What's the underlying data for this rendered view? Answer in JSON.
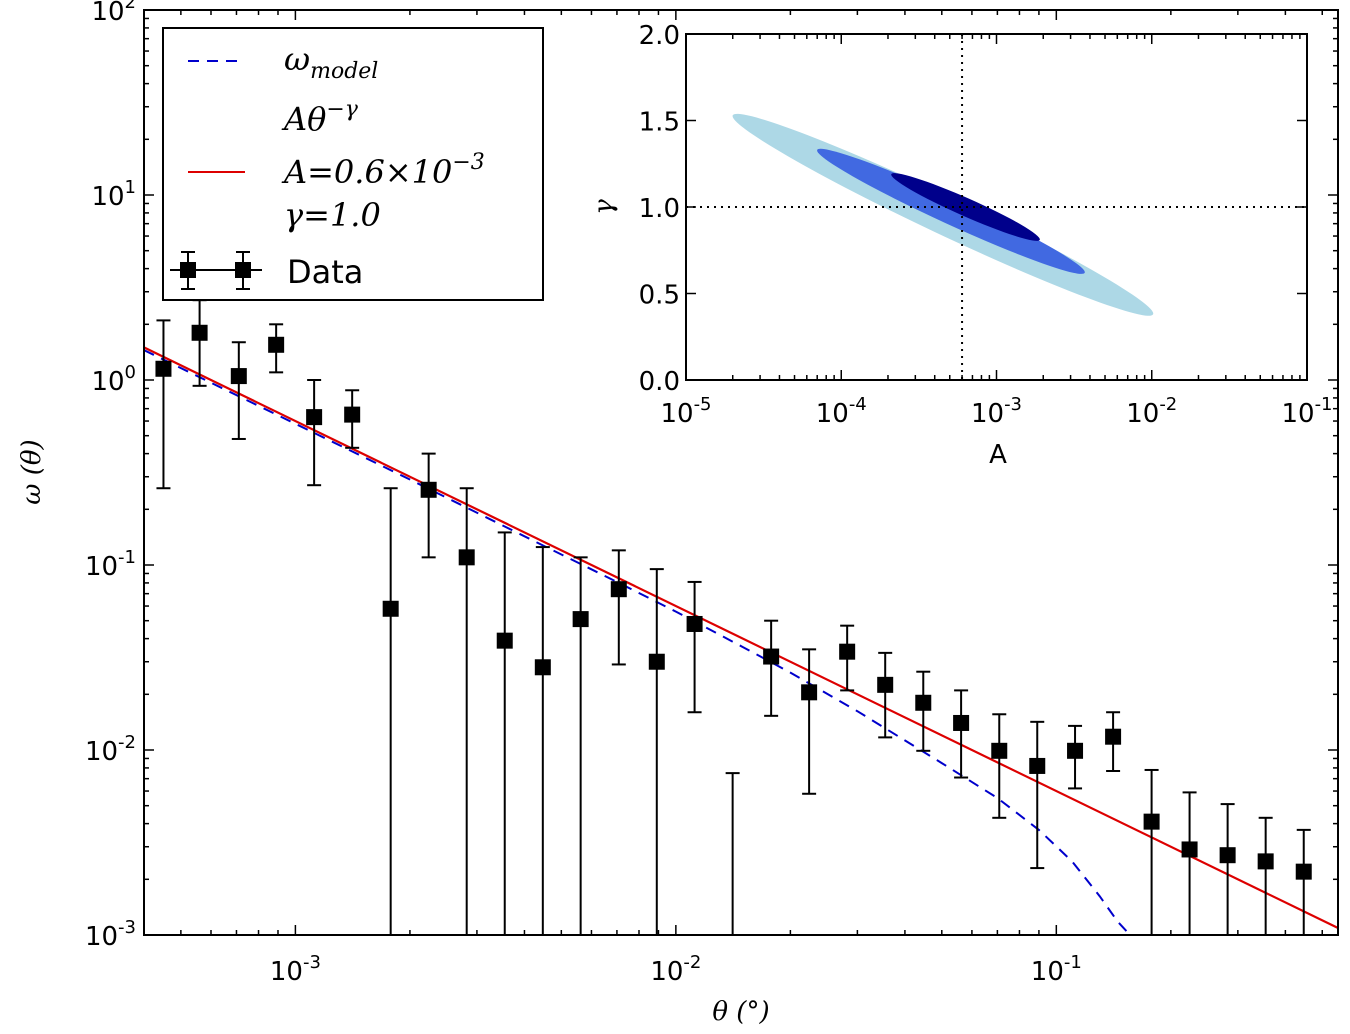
{
  "chart_data": [
    {
      "type": "scatter",
      "xscale": "log",
      "yscale": "log",
      "xlabel": "θ (°)",
      "ylabel": "ω (θ)",
      "xlim": [
        0.0004,
        0.55
      ],
      "ylim": [
        0.001,
        100
      ],
      "xticks": [
        {
          "value": 0.001,
          "base": "10",
          "exp": "-3"
        },
        {
          "value": 0.01,
          "base": "10",
          "exp": "-2"
        },
        {
          "value": 0.1,
          "base": "10",
          "exp": "-1"
        }
      ],
      "yticks": [
        {
          "value": 0.001,
          "base": "10",
          "exp": "-3"
        },
        {
          "value": 0.01,
          "base": "10",
          "exp": "-2"
        },
        {
          "value": 0.1,
          "base": "10",
          "exp": "-1"
        },
        {
          "value": 1,
          "base": "10",
          "exp": "0"
        },
        {
          "value": 10,
          "base": "10",
          "exp": "1"
        },
        {
          "value": 100,
          "base": "10",
          "exp": "2"
        }
      ],
      "legend": {
        "position": "top-left",
        "entries": [
          {
            "label": "ωmodel",
            "main": "ω",
            "sub": "model",
            "style": "dashed",
            "color": "#0000cc"
          },
          {
            "label": "Aθ−γ",
            "main": "Aθ",
            "sup": "−γ",
            "style": "none"
          },
          {
            "label": "A=0.6×10−3",
            "main": "A=0.6×10",
            "sup": "−3",
            "style": "solid",
            "color": "#dd0000"
          },
          {
            "label": "γ=1.0",
            "main": "γ=1.0",
            "style": "none"
          },
          {
            "label": "Data",
            "main": "Data",
            "style": "errorbar",
            "color": "#000000"
          }
        ]
      },
      "series": [
        {
          "name": "Data",
          "marker": "square",
          "color": "#000000",
          "points": [
            {
              "x": 0.00045,
              "y": 1.15,
              "ylow": 0.26,
              "yhigh": 2.1
            },
            {
              "x": 0.00056,
              "y": 1.8,
              "ylow": 0.93,
              "yhigh": 2.7
            },
            {
              "x": 0.00071,
              "y": 1.05,
              "ylow": 0.48,
              "yhigh": 1.6
            },
            {
              "x": 0.00089,
              "y": 1.55,
              "ylow": 1.1,
              "yhigh": 2.0
            },
            {
              "x": 0.00112,
              "y": 0.63,
              "ylow": 0.27,
              "yhigh": 1.0
            },
            {
              "x": 0.00141,
              "y": 0.65,
              "ylow": 0.43,
              "yhigh": 0.88
            },
            {
              "x": 0.00178,
              "y": 0.058,
              "ylow": 0.0009,
              "yhigh": 0.26
            },
            {
              "x": 0.00224,
              "y": 0.255,
              "ylow": 0.11,
              "yhigh": 0.4
            },
            {
              "x": 0.00282,
              "y": 0.11,
              "ylow": 0.0009,
              "yhigh": 0.26
            },
            {
              "x": 0.00355,
              "y": 0.039,
              "ylow": 0.0009,
              "yhigh": 0.15
            },
            {
              "x": 0.00447,
              "y": 0.028,
              "ylow": 0.0009,
              "yhigh": 0.125
            },
            {
              "x": 0.00562,
              "y": 0.051,
              "ylow": 0.0009,
              "yhigh": 0.11
            },
            {
              "x": 0.00708,
              "y": 0.074,
              "ylow": 0.029,
              "yhigh": 0.12
            },
            {
              "x": 0.00891,
              "y": 0.03,
              "ylow": 0.0009,
              "yhigh": 0.095
            },
            {
              "x": 0.0112,
              "y": 0.048,
              "ylow": 0.016,
              "yhigh": 0.081
            },
            {
              "x": 0.0141,
              "y": null,
              "ylow": 0.0009,
              "yhigh": 0.0075
            },
            {
              "x": 0.0178,
              "y": 0.032,
              "ylow": 0.0153,
              "yhigh": 0.05
            },
            {
              "x": 0.0224,
              "y": 0.0205,
              "ylow": 0.0058,
              "yhigh": 0.035
            },
            {
              "x": 0.0282,
              "y": 0.034,
              "ylow": 0.021,
              "yhigh": 0.047
            },
            {
              "x": 0.0355,
              "y": 0.0225,
              "ylow": 0.0117,
              "yhigh": 0.0335
            },
            {
              "x": 0.0447,
              "y": 0.018,
              "ylow": 0.0099,
              "yhigh": 0.0265
            },
            {
              "x": 0.0562,
              "y": 0.014,
              "ylow": 0.0071,
              "yhigh": 0.021
            },
            {
              "x": 0.0708,
              "y": 0.0099,
              "ylow": 0.0043,
              "yhigh": 0.0156
            },
            {
              "x": 0.0891,
              "y": 0.0082,
              "ylow": 0.0023,
              "yhigh": 0.0142
            },
            {
              "x": 0.112,
              "y": 0.0099,
              "ylow": 0.0062,
              "yhigh": 0.0135
            },
            {
              "x": 0.141,
              "y": 0.0118,
              "ylow": 0.0077,
              "yhigh": 0.016
            },
            {
              "x": 0.178,
              "y": 0.0041,
              "ylow": 0.0009,
              "yhigh": 0.0078
            },
            {
              "x": 0.224,
              "y": 0.0029,
              "ylow": 0.0009,
              "yhigh": 0.0059
            },
            {
              "x": 0.282,
              "y": 0.0027,
              "ylow": 0.0009,
              "yhigh": 0.0051
            },
            {
              "x": 0.355,
              "y": 0.0025,
              "ylow": 0.0009,
              "yhigh": 0.0043
            },
            {
              "x": 0.447,
              "y": 0.0022,
              "ylow": 0.0009,
              "yhigh": 0.0037
            }
          ]
        },
        {
          "name": "A=0.6×10−3, γ=1.0",
          "type": "line",
          "style": "solid",
          "color": "#dd0000",
          "A": 0.0006,
          "gamma": 1.0,
          "xrange": [
            0.0004,
            0.55
          ]
        },
        {
          "name": "ωmodel",
          "type": "line",
          "style": "dashed",
          "color": "#0000cc",
          "x": [
            0.0004,
            0.001,
            0.002,
            0.004,
            0.007,
            0.01,
            0.015,
            0.02,
            0.03,
            0.05,
            0.07,
            0.09,
            0.11,
            0.13,
            0.145,
            0.16
          ],
          "y": [
            1.45,
            0.58,
            0.29,
            0.143,
            0.081,
            0.056,
            0.036,
            0.0262,
            0.0162,
            0.0085,
            0.0055,
            0.0037,
            0.0025,
            0.00162,
            0.00118,
            0.00095
          ]
        }
      ]
    },
    {
      "type": "contour",
      "xscale": "log",
      "xlabel": "A",
      "ylabel": "γ",
      "xlim": [
        1e-05,
        0.1
      ],
      "ylim": [
        0.0,
        2.0
      ],
      "xticks": [
        {
          "value": 1e-05,
          "base": "10",
          "exp": "-5"
        },
        {
          "value": 0.0001,
          "base": "10",
          "exp": "-4"
        },
        {
          "value": 0.001,
          "base": "10",
          "exp": "-3"
        },
        {
          "value": 0.01,
          "base": "10",
          "exp": "-2"
        },
        {
          "value": 0.1,
          "base": "10",
          "exp": "-1"
        }
      ],
      "yticks": [
        {
          "value": 0.0,
          "label": "0.0"
        },
        {
          "value": 0.5,
          "label": "0.5"
        },
        {
          "value": 1.0,
          "label": "1.0"
        },
        {
          "value": 1.5,
          "label": "1.5"
        },
        {
          "value": 2.0,
          "label": "2.0"
        }
      ],
      "reference_lines": {
        "A": 0.0006,
        "gamma": 1.0
      },
      "contours": [
        {
          "level": "outer",
          "color": "#add8e6",
          "ends": [
            [
              2e-05,
              1.53
            ],
            [
              0.0102,
              0.38
            ]
          ],
          "half_width": 0.11
        },
        {
          "level": "middle",
          "color": "#4169e1",
          "ends": [
            [
              7e-05,
              1.33
            ],
            [
              0.0037,
              0.62
            ]
          ],
          "half_width": 0.075
        },
        {
          "level": "inner",
          "color": "#00008b",
          "ends": [
            [
              0.00021,
              1.19
            ],
            [
              0.0019,
              0.81
            ]
          ],
          "half_width": 0.052
        }
      ]
    }
  ]
}
